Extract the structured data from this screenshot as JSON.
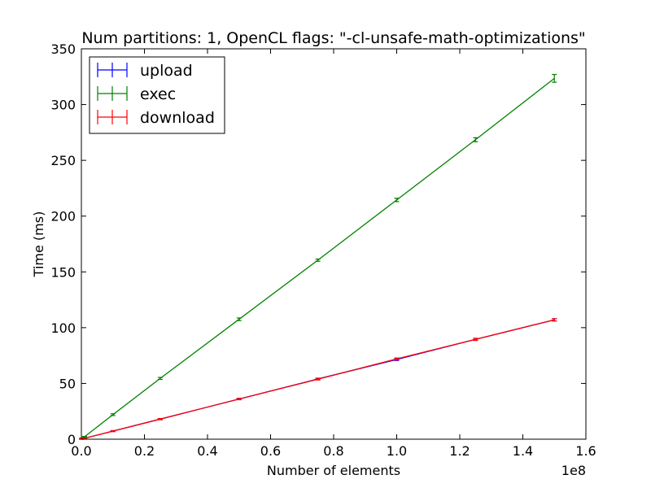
{
  "chart_data": {
    "type": "line",
    "title": "Num partitions: 1, OpenCL flags: \"-cl-unsafe-math-optimizations\"",
    "xlabel": "Number of elements",
    "ylabel": "Time (ms)",
    "x_offset_label": "1e8",
    "xlim": [
      0,
      1.6
    ],
    "ylim": [
      0,
      350
    ],
    "xticks": [
      0.0,
      0.2,
      0.4,
      0.6,
      0.8,
      1.0,
      1.2,
      1.4,
      1.6
    ],
    "xtick_labels": [
      "0.0",
      "0.2",
      "0.4",
      "0.6",
      "0.8",
      "1.0",
      "1.2",
      "1.4",
      "1.6"
    ],
    "yticks": [
      0,
      50,
      100,
      150,
      200,
      250,
      300,
      350
    ],
    "ytick_labels": [
      "0",
      "50",
      "100",
      "150",
      "200",
      "250",
      "300",
      "350"
    ],
    "grid": false,
    "legend_position": "top-left",
    "x": [
      0.0001,
      0.001,
      0.01,
      0.1,
      0.25,
      0.5,
      0.75,
      1.0,
      1.25,
      1.5
    ],
    "series": [
      {
        "name": "upload",
        "color": "#0000ff",
        "values": [
          0.1,
          0.7,
          0.8,
          7.3,
          18.0,
          36.0,
          54.0,
          71.5,
          89.5,
          107.0
        ],
        "errors": [
          0.1,
          0.2,
          0.2,
          0.4,
          0.5,
          0.6,
          0.7,
          0.9,
          0.9,
          1.0
        ]
      },
      {
        "name": "exec",
        "color": "#008000",
        "values": [
          0.2,
          0.3,
          2.2,
          22.0,
          54.5,
          107.5,
          160.5,
          214.5,
          268.5,
          323.5
        ],
        "errors": [
          0.1,
          0.2,
          0.3,
          0.8,
          0.9,
          1.2,
          1.0,
          1.5,
          1.8,
          3.5
        ]
      },
      {
        "name": "download",
        "color": "#ff0000",
        "values": [
          0.1,
          0.7,
          0.8,
          7.2,
          18.0,
          36.0,
          53.8,
          72.0,
          89.5,
          107.0
        ],
        "errors": [
          0.1,
          0.2,
          0.2,
          0.4,
          0.5,
          0.6,
          0.7,
          0.8,
          0.9,
          1.0
        ]
      }
    ]
  }
}
